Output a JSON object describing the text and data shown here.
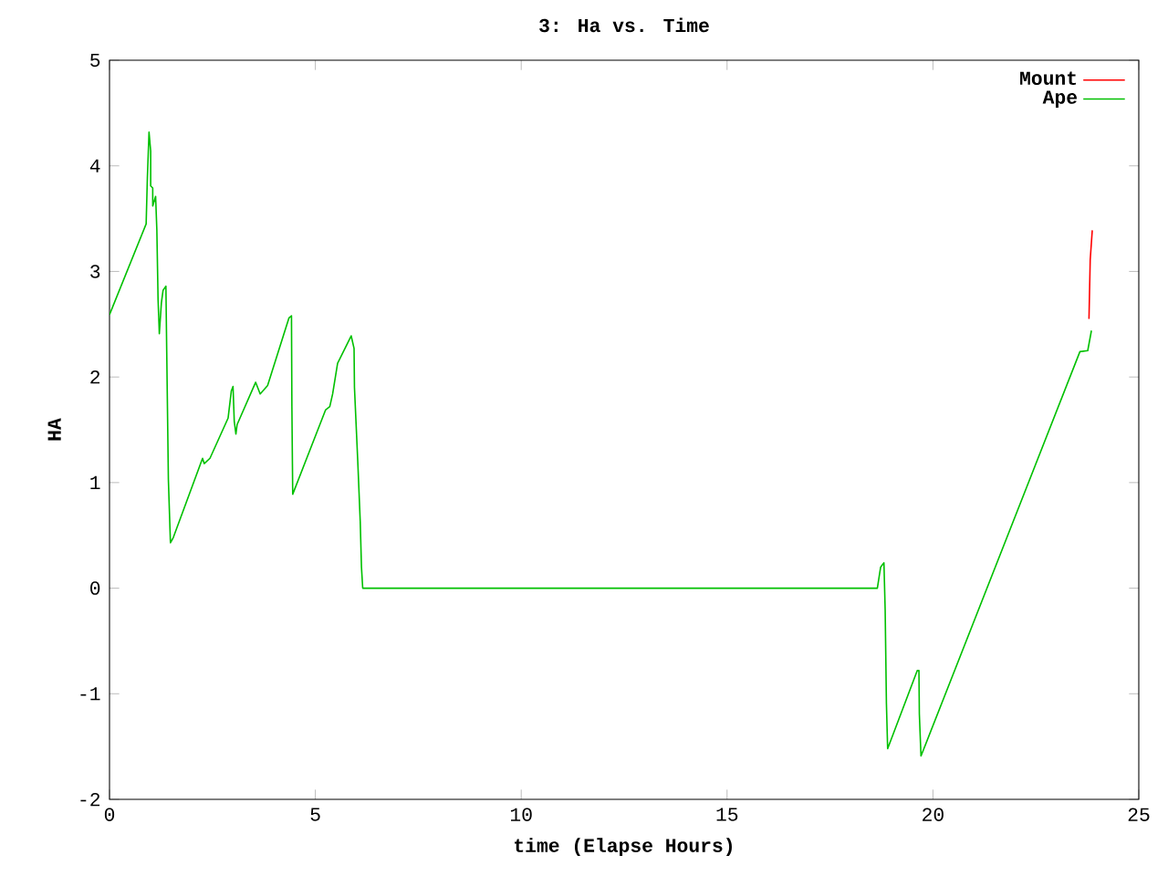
{
  "chart_data": {
    "type": "line",
    "title": "3: Ha vs. Time",
    "xlabel": "time (Elapse Hours)",
    "ylabel": "HA",
    "xlim": [
      0,
      25
    ],
    "xticks": [
      0,
      5,
      10,
      15,
      20,
      25
    ],
    "ylim": [
      -2,
      5
    ],
    "yticks": [
      -2,
      -1,
      0,
      1,
      2,
      3,
      4,
      5
    ],
    "grid": false,
    "legend": "top right",
    "marker": "none",
    "line_style": "solid",
    "series": [
      {
        "name": "Mount",
        "color": "#ff0000",
        "x": [
          23.79,
          23.82,
          23.87
        ],
        "values": [
          2.55,
          3.11,
          3.39
        ]
      },
      {
        "name": "Ape",
        "color": "#00c000",
        "x": [
          0,
          0.89,
          0.92,
          0.96,
          1.0,
          1.0,
          1.05,
          1.05,
          1.12,
          1.15,
          1.18,
          1.21,
          1.26,
          1.3,
          1.37,
          1.39,
          1.43,
          1.48,
          1.55,
          2.26,
          2.3,
          2.44,
          2.88,
          2.96,
          3.0,
          3.03,
          3.07,
          3.1,
          3.55,
          3.66,
          3.84,
          4.36,
          4.42,
          4.43,
          4.45,
          5.25,
          5.35,
          5.42,
          5.54,
          5.87,
          5.94,
          5.95,
          6.03,
          6.09,
          6.12,
          6.15,
          18.65,
          18.73,
          18.81,
          18.84,
          18.87,
          18.9,
          19.62,
          19.66,
          19.67,
          19.71,
          23.57,
          23.76,
          23.85
        ],
        "values": [
          2.59,
          3.45,
          3.89,
          4.32,
          4.14,
          3.81,
          3.79,
          3.62,
          3.71,
          3.39,
          2.73,
          2.41,
          2.7,
          2.82,
          2.86,
          2.24,
          1.03,
          0.43,
          0.48,
          1.23,
          1.18,
          1.23,
          1.61,
          1.87,
          1.91,
          1.58,
          1.46,
          1.55,
          1.95,
          1.84,
          1.92,
          2.56,
          2.58,
          1.72,
          0.89,
          1.69,
          1.72,
          1.84,
          2.13,
          2.39,
          2.27,
          1.9,
          1.2,
          0.63,
          0.2,
          0,
          0,
          0.2,
          0.24,
          -0.21,
          -1.09,
          -1.52,
          -0.78,
          -0.78,
          -1.19,
          -1.59,
          2.24,
          2.25,
          2.44
        ]
      }
    ]
  }
}
